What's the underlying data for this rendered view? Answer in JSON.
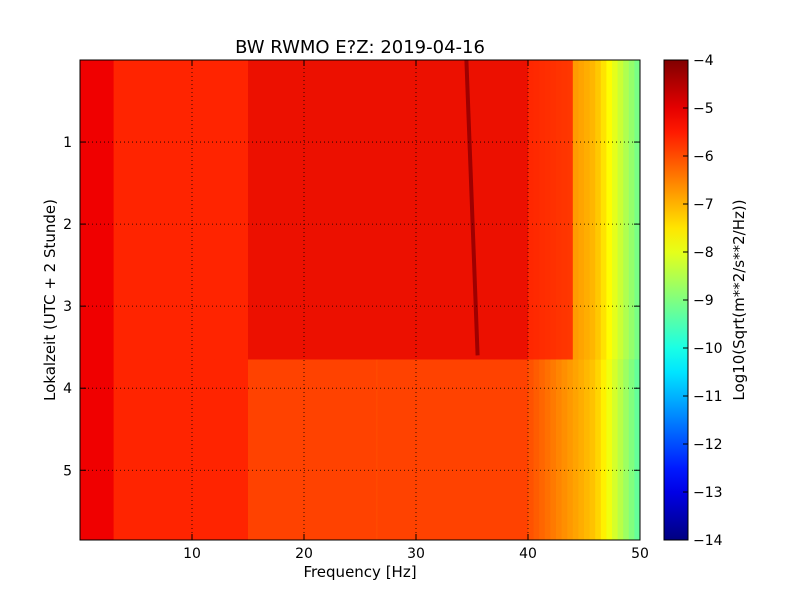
{
  "chart_data": {
    "type": "heatmap",
    "title": "BW RWMO E?Z: 2019-04-16",
    "xlabel": "Frequency [Hz]",
    "ylabel": "Lokalzeit (UTC + 2 Stunde)",
    "xlim": [
      0,
      50
    ],
    "ylim": [
      5.85,
      0
    ],
    "x_ticks": [
      10,
      20,
      30,
      40,
      50
    ],
    "y_ticks": [
      1,
      2,
      3,
      4,
      5
    ],
    "grid": true,
    "colorbar": {
      "label": "Log10(Sqrt(m**2/s**2/Hz))",
      "range": [
        -14,
        -4
      ],
      "ticks": [
        -4,
        -5,
        -6,
        -7,
        -8,
        -9,
        -10,
        -11,
        -12,
        -13,
        -14
      ],
      "colormap": "jet"
    },
    "features": [
      {
        "kind": "band",
        "x_range": [
          15,
          40
        ],
        "y_range": [
          0,
          3.65
        ],
        "value": -5.0
      },
      {
        "kind": "band",
        "x_range": [
          40,
          44
        ],
        "y_range": [
          0,
          3.65
        ],
        "value": -5.5
      },
      {
        "kind": "drifting-line",
        "x_start": 34.5,
        "x_end": 35.5,
        "y_range": [
          0,
          3.6
        ],
        "value": -4.3
      },
      {
        "kind": "spectral-line",
        "x": 26.5,
        "y_range": [
          3.65,
          5.85
        ],
        "value": -6.0
      },
      {
        "kind": "event",
        "y": 3.65,
        "description_value": -5.5
      }
    ],
    "colors": {
      "high": "#7f0000",
      "low": "#00007f"
    }
  }
}
